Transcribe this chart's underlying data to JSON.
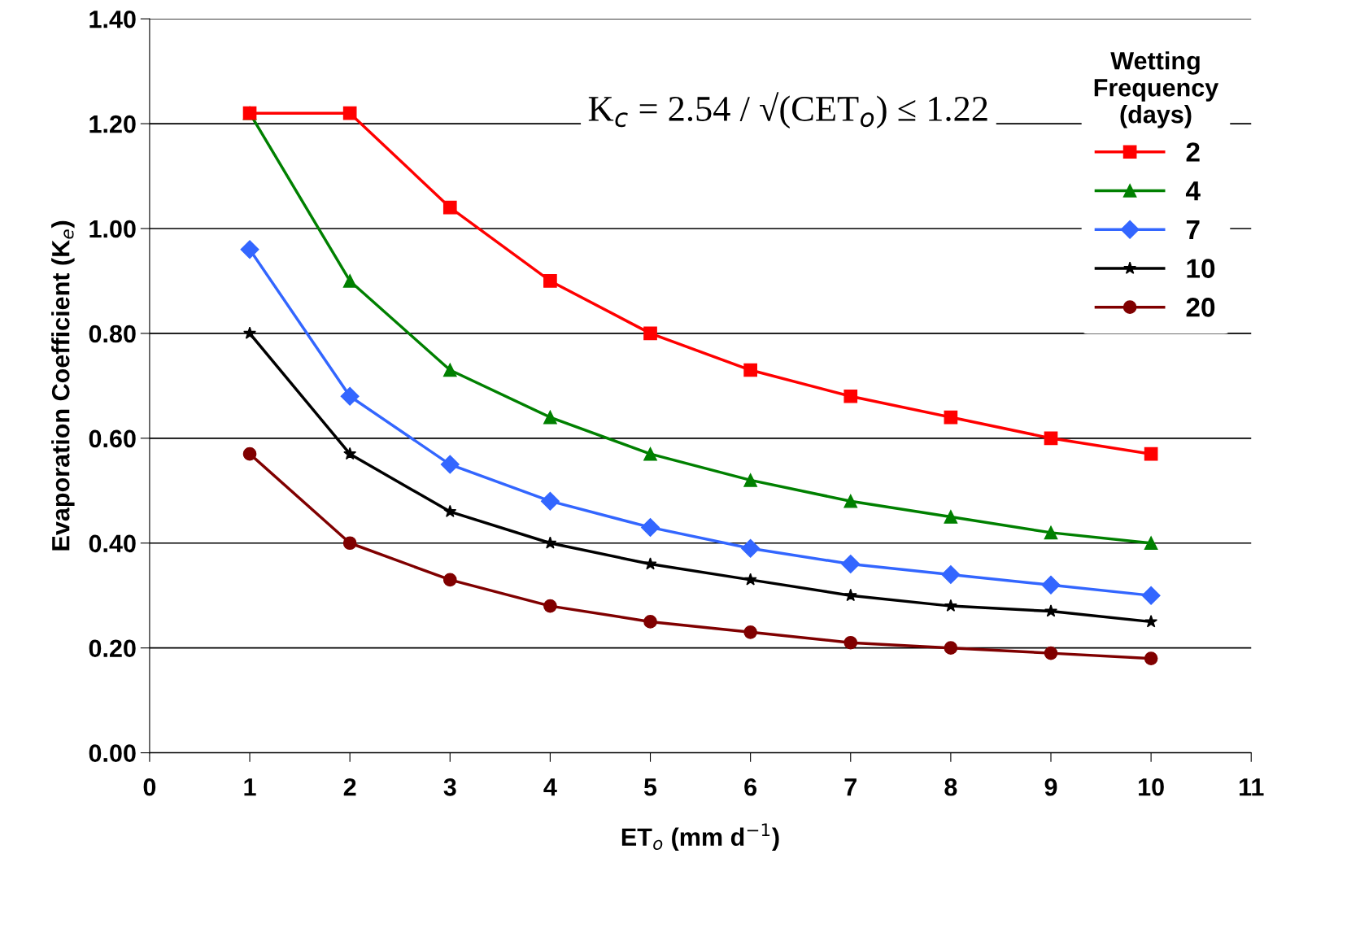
{
  "chart_data": {
    "type": "line",
    "xlabel": "ET$_{o}$ (mm d$^{−1}$)",
    "ylabel": "Evaporation Coefficient (K$_{e}$)",
    "legend_title": "Wetting\nFrequency\n(days)",
    "annotations": [
      "K$_{c}$ = 2.54 / √(CET$_{o}$) ≤ 1.22"
    ],
    "x": [
      1,
      2,
      3,
      4,
      5,
      6,
      7,
      8,
      9,
      10
    ],
    "series": [
      {
        "name": "2",
        "color": "#ff0000",
        "marker": "square",
        "values": [
          1.22,
          1.22,
          1.04,
          0.9,
          0.8,
          0.73,
          0.68,
          0.64,
          0.6,
          0.57
        ]
      },
      {
        "name": "4",
        "color": "#008000",
        "marker": "triangle",
        "values": [
          1.22,
          0.9,
          0.73,
          0.64,
          0.57,
          0.52,
          0.48,
          0.45,
          0.42,
          0.4
        ]
      },
      {
        "name": "7",
        "color": "#3366ff",
        "marker": "diamond",
        "values": [
          0.96,
          0.68,
          0.55,
          0.48,
          0.43,
          0.39,
          0.36,
          0.34,
          0.32,
          0.3
        ]
      },
      {
        "name": "10",
        "color": "#000000",
        "marker": "star",
        "values": [
          0.8,
          0.57,
          0.46,
          0.4,
          0.36,
          0.33,
          0.3,
          0.28,
          0.27,
          0.25
        ]
      },
      {
        "name": "20",
        "color": "#800000",
        "marker": "circle",
        "values": [
          0.57,
          0.4,
          0.33,
          0.28,
          0.25,
          0.23,
          0.21,
          0.2,
          0.19,
          0.18
        ]
      }
    ],
    "xlim": [
      0,
      11
    ],
    "xticks": [
      0,
      1,
      2,
      3,
      4,
      5,
      6,
      7,
      8,
      9,
      10,
      11
    ],
    "ylim": [
      0,
      1.4
    ],
    "yticks": [
      {
        "value": 0,
        "label": "0.00"
      },
      {
        "value": 0.2,
        "label": "0.20"
      },
      {
        "value": 0.4,
        "label": "0.40"
      },
      {
        "value": 0.6,
        "label": "0.60"
      },
      {
        "value": 0.8,
        "label": "0.80"
      },
      {
        "value": 1.0,
        "label": "1.00"
      },
      {
        "value": 1.2,
        "label": "1.20"
      },
      {
        "value": 1.4,
        "label": "1.40"
      }
    ],
    "grid": "y",
    "legend": "right",
    "line_style": "solid"
  }
}
